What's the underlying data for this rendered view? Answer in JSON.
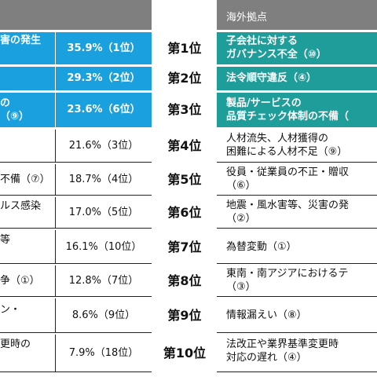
{
  "header": {
    "overseas_label": "海外拠点"
  },
  "rows": [
    {
      "left_text": "害の発生",
      "left_value": "35.9%（1位）",
      "rank": "第1位",
      "right_text_1": "子会社に対する",
      "right_text_2": "ガバナンス不全（⑩）"
    },
    {
      "left_text": "",
      "left_value": "29.3%（2位）",
      "rank": "第2位",
      "right_text_1": "法令順守違反（④）",
      "right_text_2": ""
    },
    {
      "left_text_1": "の",
      "left_text_2": "（⑨）",
      "left_value": "23.6%（6位）",
      "rank": "第3位",
      "right_text_1": "製品/サービスの",
      "right_text_2": "品質チェック体制の不備（"
    },
    {
      "left_text": "",
      "left_value": "21.6%（3位）",
      "rank": "第4位",
      "right_text_1": "人材流失、人材獲得の",
      "right_text_2": "困難による人材不足（⑨）"
    },
    {
      "left_text": "不備（⑦）",
      "left_value": "18.7%（4位）",
      "rank": "第5位",
      "right_text_1": "役員・従業員の不正・贈収",
      "right_text_2": "（⑥）"
    },
    {
      "left_text": "ルス感染",
      "left_value": "17.0%（5位）",
      "rank": "第6位",
      "right_text_1": "地震・風水害等、災害の発",
      "right_text_2": "（②）"
    },
    {
      "left_text": "等",
      "left_value": "16.1%（10位）",
      "rank": "第7位",
      "right_text_1": "為替変動（①）",
      "right_text_2": ""
    },
    {
      "left_text": "争（①）",
      "left_value": "12.8%（7位）",
      "rank": "第8位",
      "right_text_1": "東南・南アジアにおけるテ",
      "right_text_2": "（③）"
    },
    {
      "left_text": "ン・",
      "left_value": "8.6%（9位）",
      "rank": "第9位",
      "right_text_1": "情報漏えい（⑧）",
      "right_text_2": ""
    },
    {
      "left_text": "更時の",
      "left_value": "7.9%（18位）",
      "rank": "第10位",
      "right_text_1": "法改正や業界基準変更時",
      "right_text_2": "対応の遅れ（④）"
    }
  ]
}
